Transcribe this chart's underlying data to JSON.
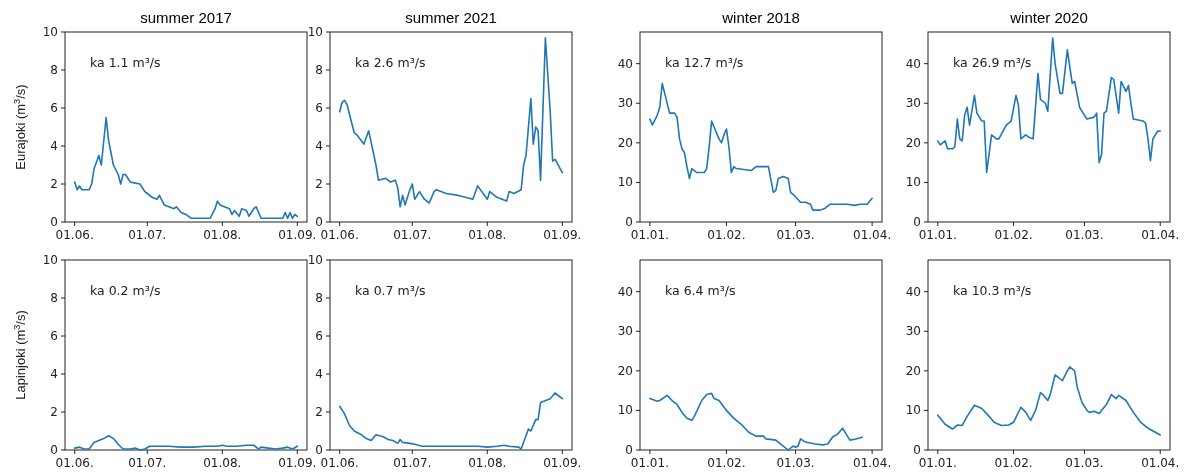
{
  "chart_data": [
    {
      "type": "line",
      "title": "summer 2017",
      "ylabel": "Eurajoki (m$^{3}$/s)",
      "annotations": [
        "ka 1.1 m³/s"
      ],
      "xlim": [
        "2017-05-28",
        "2017-09-05"
      ],
      "xticks": [
        {
          "value": "2017-06-01",
          "label": "01.06."
        },
        {
          "value": "2017-07-01",
          "label": "01.07."
        },
        {
          "value": "2017-08-01",
          "label": "01.08."
        },
        {
          "value": "2017-09-01",
          "label": "01.09."
        }
      ],
      "ylim": [
        0,
        10
      ],
      "yticks": [
        0,
        2,
        4,
        6,
        8,
        10
      ],
      "series": [
        {
          "color": "#1f77b4",
          "x": [
            "2017-06-01",
            "2017-06-02",
            "2017-06-03",
            "2017-06-04",
            "2017-06-06",
            "2017-06-07",
            "2017-06-08",
            "2017-06-09",
            "2017-06-11",
            "2017-06-12",
            "2017-06-14",
            "2017-06-15",
            "2017-06-17",
            "2017-06-19",
            "2017-06-20",
            "2017-06-21",
            "2017-06-22",
            "2017-06-24",
            "2017-06-28",
            "2017-06-30",
            "2017-07-01",
            "2017-07-03",
            "2017-07-05",
            "2017-07-06",
            "2017-07-08",
            "2017-07-10",
            "2017-07-12",
            "2017-07-13",
            "2017-07-15",
            "2017-07-17",
            "2017-07-19",
            "2017-07-27",
            "2017-07-29",
            "2017-07-30",
            "2017-07-31",
            "2017-08-04",
            "2017-08-05",
            "2017-08-06",
            "2017-08-08",
            "2017-08-09",
            "2017-08-11",
            "2017-08-12",
            "2017-08-14",
            "2017-08-15",
            "2017-08-17",
            "2017-08-26",
            "2017-08-27",
            "2017-08-28",
            "2017-08-29",
            "2017-08-30",
            "2017-08-31",
            "2017-09-01"
          ],
          "values": [
            2.1,
            1.7,
            1.9,
            1.7,
            1.7,
            1.7,
            2.0,
            2.8,
            3.5,
            3.0,
            5.5,
            4.3,
            3.0,
            2.5,
            2.0,
            2.5,
            2.5,
            2.1,
            2.0,
            1.6,
            1.5,
            1.3,
            1.2,
            1.4,
            0.9,
            0.8,
            0.7,
            0.8,
            0.5,
            0.4,
            0.2,
            0.2,
            0.7,
            1.1,
            0.9,
            0.7,
            0.4,
            0.6,
            0.3,
            0.7,
            0.6,
            0.3,
            0.7,
            0.8,
            0.2,
            0.2,
            0.5,
            0.2,
            0.5,
            0.2,
            0.4,
            0.3
          ]
        }
      ]
    },
    {
      "type": "line",
      "title": "summer 2021",
      "annotations": [
        "ka 2.6 m³/s"
      ],
      "xlim": [
        "2021-05-28",
        "2021-09-05"
      ],
      "xticks": [
        {
          "value": "2021-06-01",
          "label": "01.06."
        },
        {
          "value": "2021-07-01",
          "label": "01.07."
        },
        {
          "value": "2021-08-01",
          "label": "01.08."
        },
        {
          "value": "2021-09-01",
          "label": "01.09."
        }
      ],
      "ylim": [
        0,
        10
      ],
      "yticks": [
        0,
        2,
        4,
        6,
        8,
        10
      ],
      "series": [
        {
          "color": "#1f77b4",
          "x": [
            "2021-06-01",
            "2021-06-02",
            "2021-06-03",
            "2021-06-04",
            "2021-06-07",
            "2021-06-08",
            "2021-06-11",
            "2021-06-13",
            "2021-06-16",
            "2021-06-17",
            "2021-06-20",
            "2021-06-22",
            "2021-06-24",
            "2021-06-25",
            "2021-06-26",
            "2021-06-27",
            "2021-06-28",
            "2021-06-30",
            "2021-07-01",
            "2021-07-02",
            "2021-07-04",
            "2021-07-06",
            "2021-07-08",
            "2021-07-10",
            "2021-07-11",
            "2021-07-15",
            "2021-07-20",
            "2021-07-23",
            "2021-07-26",
            "2021-07-28",
            "2021-08-01",
            "2021-08-02",
            "2021-08-05",
            "2021-08-09",
            "2021-08-10",
            "2021-08-12",
            "2021-08-15",
            "2021-08-16",
            "2021-08-17",
            "2021-08-19",
            "2021-08-20",
            "2021-08-21",
            "2021-08-22",
            "2021-08-23",
            "2021-08-25",
            "2021-08-27",
            "2021-08-28",
            "2021-08-29",
            "2021-09-01"
          ],
          "values": [
            5.8,
            6.3,
            6.4,
            6.2,
            4.7,
            4.6,
            4.1,
            4.8,
            3.0,
            2.2,
            2.3,
            2.1,
            2.2,
            1.8,
            0.8,
            1.4,
            0.9,
            1.7,
            2.0,
            1.2,
            1.6,
            1.2,
            1.0,
            1.6,
            1.7,
            1.5,
            1.4,
            1.3,
            1.2,
            1.9,
            1.2,
            1.6,
            1.3,
            1.1,
            1.6,
            1.5,
            1.7,
            3.0,
            3.5,
            6.5,
            4.1,
            5.0,
            4.8,
            2.2,
            9.7,
            5.8,
            3.2,
            3.3,
            2.6
          ]
        }
      ]
    },
    {
      "type": "line",
      "title": "winter 2018",
      "annotations": [
        "ka 12.7 m³/s"
      ],
      "xlim": [
        "2017-12-28",
        "2018-04-05"
      ],
      "xticks": [
        {
          "value": "2018-01-01",
          "label": "01.01."
        },
        {
          "value": "2018-02-01",
          "label": "01.02."
        },
        {
          "value": "2018-03-01",
          "label": "01.03."
        },
        {
          "value": "2018-04-01",
          "label": "01.04."
        }
      ],
      "ylim": [
        0,
        48
      ],
      "yticks": [
        0,
        10,
        20,
        30,
        40
      ],
      "series": [
        {
          "color": "#1f77b4",
          "x": [
            "2018-01-01",
            "2018-01-02",
            "2018-01-04",
            "2018-01-05",
            "2018-01-06",
            "2018-01-07",
            "2018-01-09",
            "2018-01-11",
            "2018-01-12",
            "2018-01-13",
            "2018-01-14",
            "2018-01-15",
            "2018-01-16",
            "2018-01-17",
            "2018-01-18",
            "2018-01-19",
            "2018-01-20",
            "2018-01-23",
            "2018-01-24",
            "2018-01-25",
            "2018-01-26",
            "2018-01-27",
            "2018-01-29",
            "2018-01-30",
            "2018-01-31",
            "2018-02-01",
            "2018-02-02",
            "2018-02-03",
            "2018-02-04",
            "2018-02-05",
            "2018-02-11",
            "2018-02-13",
            "2018-02-18",
            "2018-02-20",
            "2018-02-21",
            "2018-02-22",
            "2018-02-24",
            "2018-02-26",
            "2018-02-27",
            "2018-02-28",
            "2018-03-03",
            "2018-03-05",
            "2018-03-07",
            "2018-03-08",
            "2018-03-11",
            "2018-03-13",
            "2018-03-15",
            "2018-03-22",
            "2018-03-25",
            "2018-03-27",
            "2018-03-30",
            "2018-04-01"
          ],
          "values": [
            26,
            24.5,
            27,
            29,
            35,
            32.5,
            27.5,
            27.5,
            26.5,
            21,
            18.5,
            17.5,
            14,
            11,
            13.5,
            13,
            12.5,
            12.5,
            13.5,
            19,
            25.5,
            24,
            21,
            20,
            22,
            23.5,
            19,
            12.5,
            14,
            13.5,
            13,
            14,
            14,
            7.5,
            8,
            11,
            11.5,
            11,
            7.5,
            7,
            5,
            5,
            4.5,
            3,
            3,
            3.5,
            4.5,
            4.5,
            4.2,
            4.5,
            4.5,
            6
          ]
        }
      ]
    },
    {
      "type": "line",
      "title": "winter 2020",
      "annotations": [
        "ka 26.9 m³/s"
      ],
      "xlim": [
        "2019-12-28",
        "2020-04-05"
      ],
      "xticks": [
        {
          "value": "2020-01-01",
          "label": "01.01."
        },
        {
          "value": "2020-02-01",
          "label": "01.02."
        },
        {
          "value": "2020-03-01",
          "label": "01.03."
        },
        {
          "value": "2020-04-01",
          "label": "01.04."
        }
      ],
      "ylim": [
        0,
        48
      ],
      "yticks": [
        0,
        10,
        20,
        30,
        40
      ],
      "series": [
        {
          "color": "#1f77b4",
          "x": [
            "2020-01-01",
            "2020-01-02",
            "2020-01-04",
            "2020-01-05",
            "2020-01-07",
            "2020-01-08",
            "2020-01-09",
            "2020-01-10",
            "2020-01-11",
            "2020-01-12",
            "2020-01-13",
            "2020-01-14",
            "2020-01-16",
            "2020-01-17",
            "2020-01-19",
            "2020-01-20",
            "2020-01-21",
            "2020-01-23",
            "2020-01-25",
            "2020-01-26",
            "2020-01-29",
            "2020-01-31",
            "2020-02-02",
            "2020-02-03",
            "2020-02-04",
            "2020-02-06",
            "2020-02-07",
            "2020-02-09",
            "2020-02-11",
            "2020-02-12",
            "2020-02-14",
            "2020-02-15",
            "2020-02-17",
            "2020-02-18",
            "2020-02-20",
            "2020-02-21",
            "2020-02-23",
            "2020-02-25",
            "2020-02-26",
            "2020-02-28",
            "2020-03-02",
            "2020-03-05",
            "2020-03-06",
            "2020-03-07",
            "2020-03-08",
            "2020-03-09",
            "2020-03-10",
            "2020-03-12",
            "2020-03-13",
            "2020-03-15",
            "2020-03-16",
            "2020-03-18",
            "2020-03-19",
            "2020-03-20",
            "2020-03-21",
            "2020-03-25",
            "2020-03-26",
            "2020-03-27",
            "2020-03-28",
            "2020-03-29",
            "2020-03-31",
            "2020-04-01"
          ],
          "values": [
            20.5,
            19.5,
            20.5,
            18.5,
            18.5,
            19,
            26,
            21,
            20.5,
            27,
            29,
            24.5,
            32,
            27.5,
            25.5,
            25.5,
            12.5,
            22,
            21,
            21,
            24.5,
            25.5,
            32,
            29.5,
            21,
            22,
            21.5,
            21,
            37.5,
            31,
            30,
            28,
            46.5,
            40,
            32.5,
            32.5,
            43.5,
            35,
            35.5,
            29,
            26,
            26.5,
            27.5,
            15,
            17,
            27.5,
            28,
            36.5,
            36,
            27.5,
            35.5,
            33,
            34.5,
            30,
            26,
            25.5,
            25,
            21,
            15.5,
            21,
            23,
            23
          ]
        }
      ]
    },
    {
      "type": "line",
      "ylabel": "Lapinjoki (m$^{3}$/s)",
      "annotations": [
        "ka 0.2 m³/s"
      ],
      "xlim": [
        "2017-05-28",
        "2017-09-05"
      ],
      "xticks": [
        {
          "value": "2017-06-01",
          "label": "01.06."
        },
        {
          "value": "2017-07-01",
          "label": "01.07."
        },
        {
          "value": "2017-08-01",
          "label": "01.08."
        },
        {
          "value": "2017-09-01",
          "label": "01.09."
        }
      ],
      "ylim": [
        0,
        10
      ],
      "yticks": [
        0,
        2,
        4,
        6,
        8,
        10
      ],
      "series": [
        {
          "color": "#1f77b4",
          "x": [
            "2017-06-01",
            "2017-06-03",
            "2017-06-05",
            "2017-06-07",
            "2017-06-09",
            "2017-06-11",
            "2017-06-13",
            "2017-06-15",
            "2017-06-17",
            "2017-06-19",
            "2017-06-21",
            "2017-06-24",
            "2017-06-26",
            "2017-06-28",
            "2017-06-30",
            "2017-07-02",
            "2017-07-05",
            "2017-07-10",
            "2017-07-15",
            "2017-07-20",
            "2017-07-25",
            "2017-07-30",
            "2017-08-01",
            "2017-08-03",
            "2017-08-07",
            "2017-08-11",
            "2017-08-14",
            "2017-08-16",
            "2017-08-17",
            "2017-08-20",
            "2017-08-23",
            "2017-08-26",
            "2017-08-28",
            "2017-08-30",
            "2017-09-01"
          ],
          "values": [
            0.1,
            0.15,
            0.05,
            0.05,
            0.4,
            0.5,
            0.6,
            0.75,
            0.6,
            0.3,
            0.05,
            0.05,
            0.1,
            0.0,
            0.05,
            0.2,
            0.2,
            0.2,
            0.15,
            0.15,
            0.2,
            0.2,
            0.25,
            0.2,
            0.2,
            0.25,
            0.25,
            0.05,
            0.15,
            0.1,
            0.05,
            0.1,
            0.15,
            0.05,
            0.2
          ]
        }
      ]
    },
    {
      "type": "line",
      "annotations": [
        "ka 0.7 m³/s"
      ],
      "xlim": [
        "2021-05-28",
        "2021-09-05"
      ],
      "xticks": [
        {
          "value": "2021-06-01",
          "label": "01.06."
        },
        {
          "value": "2021-07-01",
          "label": "01.07."
        },
        {
          "value": "2021-08-01",
          "label": "01.08."
        },
        {
          "value": "2021-09-01",
          "label": "01.09."
        }
      ],
      "ylim": [
        0,
        10
      ],
      "yticks": [
        0,
        2,
        4,
        6,
        8,
        10
      ],
      "series": [
        {
          "color": "#1f77b4",
          "x": [
            "2021-06-01",
            "2021-06-03",
            "2021-06-05",
            "2021-06-07",
            "2021-06-10",
            "2021-06-12",
            "2021-06-14",
            "2021-06-16",
            "2021-06-19",
            "2021-06-21",
            "2021-06-23",
            "2021-06-25",
            "2021-06-26",
            "2021-06-27",
            "2021-06-30",
            "2021-07-02",
            "2021-07-05",
            "2021-07-10",
            "2021-07-20",
            "2021-07-28",
            "2021-08-01",
            "2021-08-05",
            "2021-08-08",
            "2021-08-10",
            "2021-08-14",
            "2021-08-15",
            "2021-08-18",
            "2021-08-19",
            "2021-08-21",
            "2021-08-22",
            "2021-08-23",
            "2021-08-27",
            "2021-08-29",
            "2021-09-01"
          ],
          "values": [
            2.3,
            1.9,
            1.3,
            1.0,
            0.8,
            0.6,
            0.5,
            0.8,
            0.7,
            0.55,
            0.5,
            0.35,
            0.55,
            0.4,
            0.35,
            0.3,
            0.2,
            0.2,
            0.2,
            0.2,
            0.15,
            0.2,
            0.25,
            0.2,
            0.15,
            0.05,
            1.1,
            1.0,
            1.6,
            1.6,
            2.5,
            2.7,
            3.0,
            2.7
          ]
        }
      ]
    },
    {
      "type": "line",
      "annotations": [
        "ka 6.4 m³/s"
      ],
      "xlim": [
        "2017-12-28",
        "2018-04-05"
      ],
      "xticks": [
        {
          "value": "2018-01-01",
          "label": "01.01."
        },
        {
          "value": "2018-02-01",
          "label": "01.02."
        },
        {
          "value": "2018-03-01",
          "label": "01.03."
        },
        {
          "value": "2018-04-01",
          "label": "01.04."
        }
      ],
      "ylim": [
        0,
        48
      ],
      "yticks": [
        0,
        10,
        20,
        30,
        40
      ],
      "series": [
        {
          "color": "#1f77b4",
          "x": [
            "2018-01-01",
            "2018-01-04",
            "2018-01-05",
            "2018-01-08",
            "2018-01-10",
            "2018-01-12",
            "2018-01-14",
            "2018-01-16",
            "2018-01-18",
            "2018-01-19",
            "2018-01-22",
            "2018-01-24",
            "2018-01-26",
            "2018-01-27",
            "2018-01-29",
            "2018-02-01",
            "2018-02-04",
            "2018-02-07",
            "2018-02-10",
            "2018-02-13",
            "2018-02-16",
            "2018-02-17",
            "2018-02-21",
            "2018-02-23",
            "2018-02-26",
            "2018-02-28",
            "2018-03-01",
            "2018-03-02",
            "2018-03-03",
            "2018-03-05",
            "2018-03-09",
            "2018-03-12",
            "2018-03-14",
            "2018-03-16",
            "2018-03-18",
            "2018-03-20",
            "2018-03-21",
            "2018-03-23",
            "2018-03-25",
            "2018-03-28"
          ],
          "values": [
            13,
            12.3,
            12.5,
            13.8,
            12.5,
            11.5,
            9.5,
            8,
            7.5,
            8.5,
            12.5,
            14,
            14.3,
            13,
            12.5,
            10,
            8,
            6.5,
            4.5,
            3.5,
            3.5,
            2.8,
            2.5,
            1.5,
            0,
            1,
            0.7,
            1,
            2.8,
            2,
            1.5,
            1.3,
            1.5,
            3.3,
            4,
            5.5,
            4.5,
            2.5,
            2.7,
            3.2
          ]
        }
      ]
    },
    {
      "type": "line",
      "annotations": [
        "ka 10.3 m³/s"
      ],
      "xlim": [
        "2019-12-28",
        "2020-04-05"
      ],
      "xticks": [
        {
          "value": "2020-01-01",
          "label": "01.01."
        },
        {
          "value": "2020-02-01",
          "label": "01.02."
        },
        {
          "value": "2020-03-01",
          "label": "01.03."
        },
        {
          "value": "2020-04-01",
          "label": "01.04."
        }
      ],
      "ylim": [
        0,
        48
      ],
      "yticks": [
        0,
        10,
        20,
        30,
        40
      ],
      "series": [
        {
          "color": "#1f77b4",
          "x": [
            "2020-01-01",
            "2020-01-04",
            "2020-01-07",
            "2020-01-09",
            "2020-01-11",
            "2020-01-13",
            "2020-01-16",
            "2020-01-19",
            "2020-01-22",
            "2020-01-24",
            "2020-01-27",
            "2020-01-30",
            "2020-02-01",
            "2020-02-04",
            "2020-02-06",
            "2020-02-08",
            "2020-02-10",
            "2020-02-12",
            "2020-02-13",
            "2020-02-15",
            "2020-02-16",
            "2020-02-18",
            "2020-02-20",
            "2020-02-21",
            "2020-02-23",
            "2020-02-24",
            "2020-02-26",
            "2020-02-27",
            "2020-02-29",
            "2020-03-02",
            "2020-03-03",
            "2020-03-05",
            "2020-03-07",
            "2020-03-10",
            "2020-03-12",
            "2020-03-14",
            "2020-03-15",
            "2020-03-18",
            "2020-03-21",
            "2020-03-24",
            "2020-03-27",
            "2020-03-30",
            "2020-04-01"
          ],
          "values": [
            8.8,
            6.5,
            5.3,
            6.3,
            6.2,
            8.5,
            11.3,
            10.5,
            8.5,
            7,
            6.2,
            6.3,
            7,
            10.8,
            9.5,
            7.5,
            10,
            14.5,
            14,
            12.5,
            14,
            19,
            18,
            17.5,
            20,
            21,
            20,
            16,
            12,
            10,
            9.5,
            9.8,
            9.2,
            11.5,
            14,
            13,
            13.8,
            12.5,
            9.5,
            7,
            5.5,
            4.5,
            3.8
          ]
        }
      ]
    }
  ]
}
